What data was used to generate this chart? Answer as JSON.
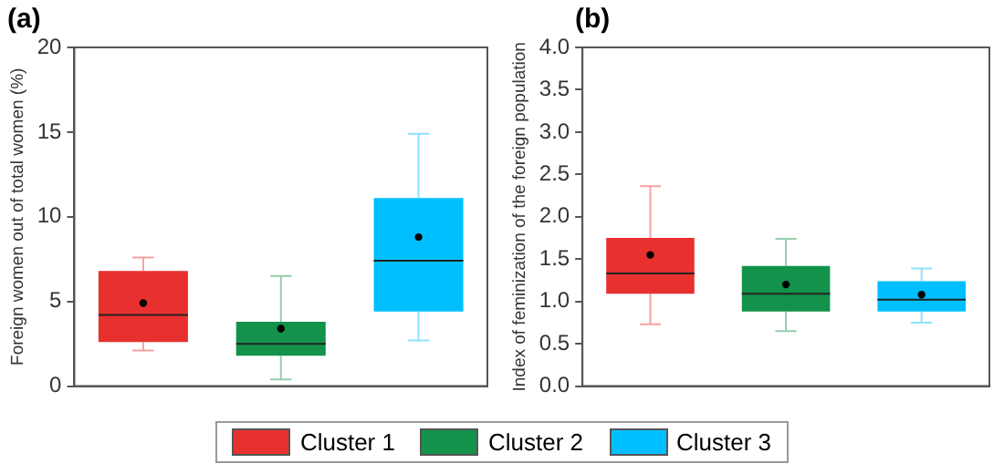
{
  "chart_data": [
    {
      "type": "box",
      "title": "(a)",
      "ylabel": "Foreign women out of total women (%)",
      "categories": [
        null,
        null,
        null
      ],
      "ylim": [
        0,
        20
      ],
      "yticks": [
        0,
        5,
        10,
        15,
        20
      ],
      "tick_labels": "y",
      "grid": false,
      "legend": "bottom",
      "series": [
        {
          "name": "Cluster 1",
          "color": "#e8312f",
          "boxes": [
            {
              "low": 2.1,
              "q1": 2.6,
              "median": 4.2,
              "q3": 6.8,
              "high": 7.6,
              "mean": 4.9
            },
            null,
            null
          ]
        },
        {
          "name": "Cluster 2",
          "color": "#12924a",
          "boxes": [
            null,
            {
              "low": 0.4,
              "q1": 1.8,
              "median": 2.5,
              "q3": 3.8,
              "high": 6.5,
              "mean": 3.4
            },
            null
          ]
        },
        {
          "name": "Cluster 3",
          "color": "#00bfff",
          "boxes": [
            null,
            null,
            {
              "low": 2.7,
              "q1": 4.4,
              "median": 7.4,
              "q3": 11.1,
              "high": 14.9,
              "mean": 8.8
            }
          ]
        }
      ]
    },
    {
      "type": "box",
      "title": "(b)",
      "ylabel": "Index of feminization of the foreign population",
      "categories": [
        null,
        null,
        null
      ],
      "ylim": [
        0,
        4
      ],
      "yticks": [
        {
          "value": 0,
          "label": "0.0"
        },
        {
          "value": 0.5,
          "label": "0.5"
        },
        {
          "value": 1,
          "label": "1.0"
        },
        {
          "value": 1.5,
          "label": "1.5"
        },
        {
          "value": 2,
          "label": "2.0"
        },
        {
          "value": 2.5,
          "label": "2.5"
        },
        {
          "value": 3,
          "label": "3.0"
        },
        {
          "value": 3.5,
          "label": "3.5"
        },
        {
          "value": 4,
          "label": "4.0"
        }
      ],
      "tick_labels": "y",
      "grid": false,
      "legend": "bottom",
      "series": [
        {
          "name": "Cluster 1",
          "color": "#e8312f",
          "boxes": [
            {
              "low": 0.73,
              "q1": 1.09,
              "median": 1.33,
              "q3": 1.75,
              "high": 2.36,
              "mean": 1.55
            },
            null,
            null
          ]
        },
        {
          "name": "Cluster 2",
          "color": "#12924a",
          "boxes": [
            null,
            {
              "low": 0.65,
              "q1": 0.88,
              "median": 1.09,
              "q3": 1.42,
              "high": 1.74,
              "mean": 1.2
            },
            null
          ]
        },
        {
          "name": "Cluster 3",
          "color": "#00bfff",
          "boxes": [
            null,
            null,
            {
              "low": 0.75,
              "q1": 0.88,
              "median": 1.02,
              "q3": 1.24,
              "high": 1.39,
              "mean": 1.08
            }
          ]
        }
      ]
    }
  ]
}
